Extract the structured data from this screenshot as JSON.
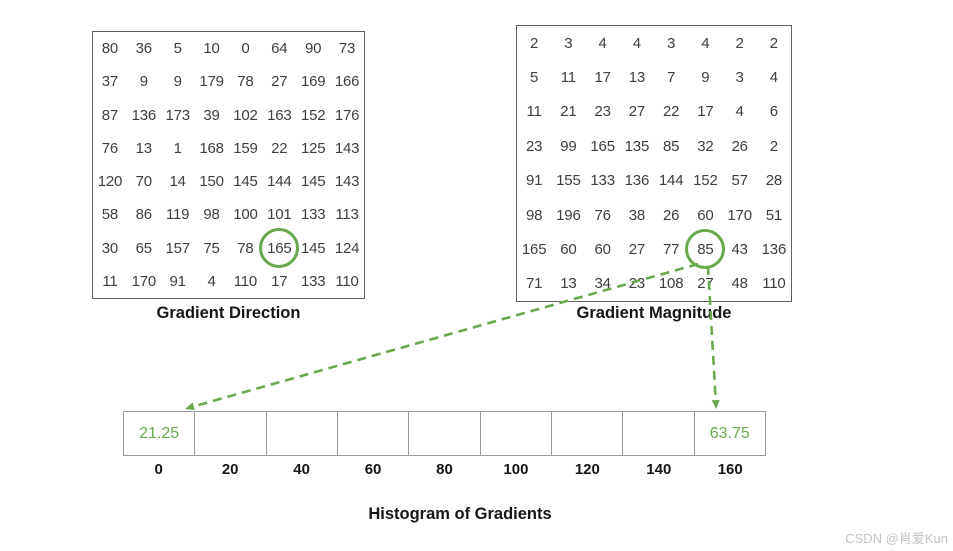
{
  "titles": {
    "direction": "Gradient Direction",
    "magnitude": "Gradient Magnitude",
    "histogram": "Histogram of Gradients"
  },
  "direction_matrix": {
    "rows": [
      [
        80,
        36,
        5,
        10,
        0,
        64,
        90,
        73
      ],
      [
        37,
        9,
        9,
        179,
        78,
        27,
        169,
        166
      ],
      [
        87,
        136,
        173,
        39,
        102,
        163,
        152,
        176
      ],
      [
        76,
        13,
        1,
        168,
        159,
        22,
        125,
        143
      ],
      [
        120,
        70,
        14,
        150,
        145,
        144,
        145,
        143
      ],
      [
        58,
        86,
        119,
        98,
        100,
        101,
        133,
        113
      ],
      [
        30,
        65,
        157,
        75,
        78,
        165,
        145,
        124
      ],
      [
        11,
        170,
        91,
        4,
        110,
        17,
        133,
        110
      ]
    ],
    "highlight": {
      "row": 6,
      "col": 5,
      "value": 165
    }
  },
  "magnitude_matrix": {
    "rows": [
      [
        2,
        3,
        4,
        4,
        3,
        4,
        2,
        2
      ],
      [
        5,
        11,
        17,
        13,
        7,
        9,
        3,
        4
      ],
      [
        11,
        21,
        23,
        27,
        22,
        17,
        4,
        6
      ],
      [
        23,
        99,
        165,
        135,
        85,
        32,
        26,
        2
      ],
      [
        91,
        155,
        133,
        136,
        144,
        152,
        57,
        28
      ],
      [
        98,
        196,
        76,
        38,
        26,
        60,
        170,
        51
      ],
      [
        165,
        60,
        60,
        27,
        77,
        85,
        43,
        136
      ],
      [
        71,
        13,
        34,
        23,
        108,
        27,
        48,
        110
      ]
    ],
    "highlight": {
      "row": 6,
      "col": 5,
      "value": 85
    }
  },
  "histogram": {
    "bins": [
      {
        "label": "0",
        "value": "21.25"
      },
      {
        "label": "20",
        "value": ""
      },
      {
        "label": "40",
        "value": ""
      },
      {
        "label": "60",
        "value": ""
      },
      {
        "label": "80",
        "value": ""
      },
      {
        "label": "100",
        "value": ""
      },
      {
        "label": "120",
        "value": ""
      },
      {
        "label": "140",
        "value": ""
      },
      {
        "label": "160",
        "value": "63.75"
      }
    ]
  },
  "colors": {
    "accent_green": "#6aa84f",
    "matrix_text": "#3e3e3e",
    "matrix_border": "#5f5f5f",
    "histogram_border": "#9a9a9a",
    "title_text": "#161616",
    "watermark_text": "#c2c2c2"
  },
  "watermark": "CSDN @肖爱Kun"
}
